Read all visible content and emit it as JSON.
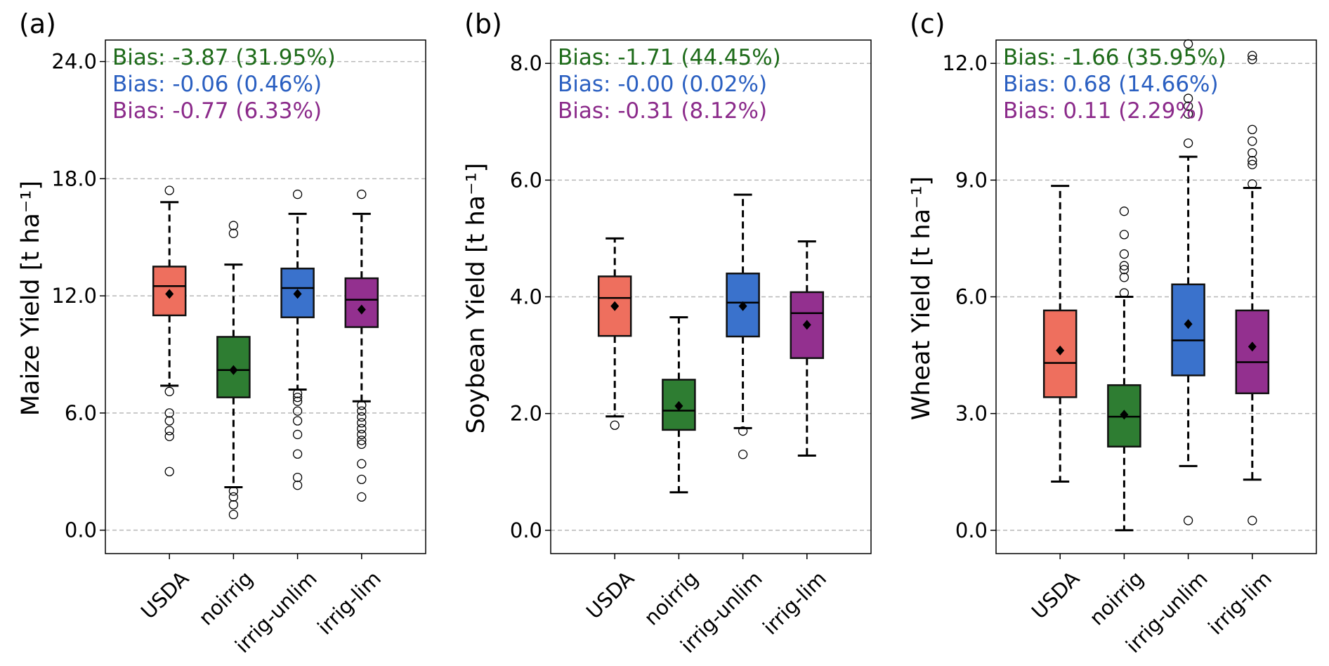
{
  "chart_data": [
    {
      "type": "box",
      "panel_label": "(a)",
      "ylabel": "Maize Yield [t ha⁻¹]",
      "ylim": [
        -1.2,
        25.1
      ],
      "yticks": [
        0,
        6,
        12,
        18,
        24
      ],
      "ytick_labels": [
        "0.0",
        "6.0",
        "12.0",
        "18.0",
        "24.0"
      ],
      "grid": "horizontal dashed",
      "categories": [
        "USDA",
        "noirrig",
        "irrig-unlim",
        "irrig-lim"
      ],
      "colors": [
        "#ee6f5e",
        "#2e7d32",
        "#3a72cc",
        "#93308f"
      ],
      "boxes": [
        {
          "whislo": 7.4,
          "q1": 11.0,
          "med": 12.5,
          "q3": 13.5,
          "whishi": 16.8,
          "mean": 12.1,
          "fliers": [
            3.0,
            4.8,
            5.1,
            5.6,
            6.0,
            7.1,
            17.4
          ]
        },
        {
          "whislo": 2.2,
          "q1": 6.8,
          "med": 8.2,
          "q3": 9.9,
          "whishi": 13.6,
          "mean": 8.2,
          "fliers": [
            0.8,
            1.3,
            1.7,
            2.0,
            15.2,
            15.6
          ]
        },
        {
          "whislo": 7.2,
          "q1": 10.9,
          "med": 12.4,
          "q3": 13.4,
          "whishi": 16.2,
          "mean": 12.1,
          "fliers": [
            2.3,
            2.7,
            3.9,
            4.9,
            5.6,
            6.1,
            6.6,
            6.8,
            7.0,
            17.2
          ]
        },
        {
          "whislo": 6.6,
          "q1": 10.4,
          "med": 11.8,
          "q3": 12.9,
          "whishi": 16.2,
          "mean": 11.3,
          "fliers": [
            1.7,
            2.6,
            3.4,
            4.4,
            4.6,
            4.9,
            5.2,
            5.5,
            5.8,
            6.1,
            6.4,
            17.2
          ]
        }
      ],
      "annotations": [
        {
          "text": "Bias: -3.87 (31.95%)",
          "color": "#1e6b1a"
        },
        {
          "text": "Bias: -0.06 (0.46%)",
          "color": "#2a5fc1"
        },
        {
          "text": "Bias: -0.77 (6.33%)",
          "color": "#8b2a8a"
        }
      ]
    },
    {
      "type": "box",
      "panel_label": "(b)",
      "ylabel": "Soybean Yield [t ha⁻¹]",
      "ylim": [
        -0.4,
        8.4
      ],
      "yticks": [
        0,
        2,
        4,
        6,
        8
      ],
      "ytick_labels": [
        "0.0",
        "2.0",
        "4.0",
        "6.0",
        "8.0"
      ],
      "grid": "horizontal dashed",
      "categories": [
        "USDA",
        "noirrig",
        "irrig-unlim",
        "irrig-lim"
      ],
      "colors": [
        "#ee6f5e",
        "#2e7d32",
        "#3a72cc",
        "#93308f"
      ],
      "boxes": [
        {
          "whislo": 1.95,
          "q1": 3.33,
          "med": 3.98,
          "q3": 4.35,
          "whishi": 5.0,
          "mean": 3.84,
          "fliers": [
            1.8
          ]
        },
        {
          "whislo": 0.65,
          "q1": 1.72,
          "med": 2.05,
          "q3": 2.58,
          "whishi": 3.65,
          "mean": 2.13,
          "fliers": []
        },
        {
          "whislo": 1.75,
          "q1": 3.32,
          "med": 3.9,
          "q3": 4.4,
          "whishi": 5.75,
          "mean": 3.84,
          "fliers": [
            1.3,
            1.7
          ]
        },
        {
          "whislo": 1.28,
          "q1": 2.95,
          "med": 3.72,
          "q3": 4.08,
          "whishi": 4.95,
          "mean": 3.52,
          "fliers": []
        }
      ],
      "annotations": [
        {
          "text": "Bias: -1.71 (44.45%)",
          "color": "#1e6b1a"
        },
        {
          "text": "Bias: -0.00 (0.02%)",
          "color": "#2a5fc1"
        },
        {
          "text": "Bias: -0.31 (8.12%)",
          "color": "#8b2a8a"
        }
      ]
    },
    {
      "type": "box",
      "panel_label": "(c)",
      "ylabel": "Wheat Yield [t ha⁻¹]",
      "ylim": [
        -0.6,
        12.6
      ],
      "yticks": [
        0,
        3,
        6,
        9,
        12
      ],
      "ytick_labels": [
        "0.0",
        "3.0",
        "6.0",
        "9.0",
        "12.0"
      ],
      "grid": "horizontal dashed",
      "categories": [
        "USDA",
        "noirrig",
        "irrig-unlim",
        "irrig-lim"
      ],
      "colors": [
        "#ee6f5e",
        "#2e7d32",
        "#3a72cc",
        "#93308f"
      ],
      "boxes": [
        {
          "whislo": 1.25,
          "q1": 3.42,
          "med": 4.3,
          "q3": 5.65,
          "whishi": 8.85,
          "mean": 4.62,
          "fliers": []
        },
        {
          "whislo": 0.0,
          "q1": 2.15,
          "med": 2.92,
          "q3": 3.73,
          "whishi": 6.0,
          "mean": 2.97,
          "fliers": [
            6.1,
            6.5,
            6.7,
            6.8,
            7.1,
            7.6,
            8.2
          ]
        },
        {
          "whislo": 1.65,
          "q1": 3.98,
          "med": 4.88,
          "q3": 6.32,
          "whishi": 9.6,
          "mean": 5.3,
          "fliers": [
            0.25,
            9.95,
            10.7,
            10.9,
            11.1,
            12.5
          ]
        },
        {
          "whislo": 1.3,
          "q1": 3.52,
          "med": 4.32,
          "q3": 5.65,
          "whishi": 8.8,
          "mean": 4.72,
          "fliers": [
            0.25,
            8.9,
            9.4,
            9.5,
            9.7,
            10.0,
            10.3,
            12.1,
            12.2
          ]
        }
      ],
      "annotations": [
        {
          "text": "Bias: -1.66 (35.95%)",
          "color": "#1e6b1a"
        },
        {
          "text": "Bias: 0.68 (14.66%)",
          "color": "#2a5fc1"
        },
        {
          "text": "Bias: 0.11 (2.29%)",
          "color": "#8b2a8a"
        }
      ]
    }
  ]
}
